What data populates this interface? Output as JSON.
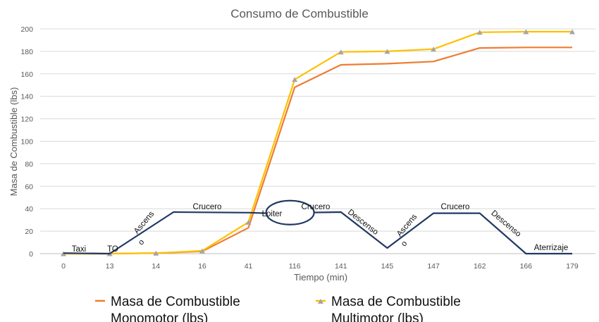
{
  "chart_data": {
    "type": "line",
    "title": "Consumo de Combustible",
    "xlabel": "Tiempo (min)",
    "ylabel": "Masa de Combustible (lbs)",
    "categories": [
      "0",
      "13",
      "14",
      "16",
      "41",
      "116",
      "141",
      "145",
      "147",
      "162",
      "166",
      "179"
    ],
    "ylim": [
      0,
      200
    ],
    "yticks": [
      "0",
      "20",
      "40",
      "60",
      "80",
      "100",
      "120",
      "140",
      "160",
      "180",
      "200"
    ],
    "grid": true,
    "legend_position": "bottom",
    "series": [
      {
        "name": "Masa de Combustible Monomotor (lbs)",
        "color": "#ED7D31",
        "values": [
          0,
          0,
          0.5,
          2,
          23,
          148,
          168,
          169,
          171,
          183,
          183.5,
          183.5
        ]
      },
      {
        "name": "Masa de Combustible Multimotor (lbs)",
        "color": "#FFC000",
        "marker": "triangle",
        "values": [
          0,
          0,
          0.5,
          2.5,
          28,
          155,
          179.5,
          180,
          182,
          197,
          197.5,
          197.5
        ]
      }
    ],
    "mission_profile": {
      "color": "#203864",
      "points": [
        [
          0,
          0.5
        ],
        [
          1,
          0
        ],
        [
          2.38,
          37
        ],
        [
          4,
          36.5
        ],
        [
          4.4,
          36
        ],
        [
          6,
          37
        ],
        [
          7,
          5
        ],
        [
          8,
          36
        ],
        [
          9,
          36
        ],
        [
          10,
          0
        ],
        [
          11,
          0
        ]
      ],
      "loiter_center": [
        4.9,
        36.5
      ]
    },
    "phase_labels": {
      "taxi": "Taxi",
      "to": "TO",
      "ascenso1_a": "Ascens",
      "ascenso1_b": "o",
      "crucero1": "Crucero",
      "loiter": "Loiter",
      "crucero2": "Crucero",
      "descenso1": "Descenso",
      "ascenso2_a": "Ascens",
      "ascenso2_b": "o",
      "crucero3": "Crucero",
      "descenso2": "Descenso",
      "aterrizaje": "Aterrizaje"
    }
  }
}
